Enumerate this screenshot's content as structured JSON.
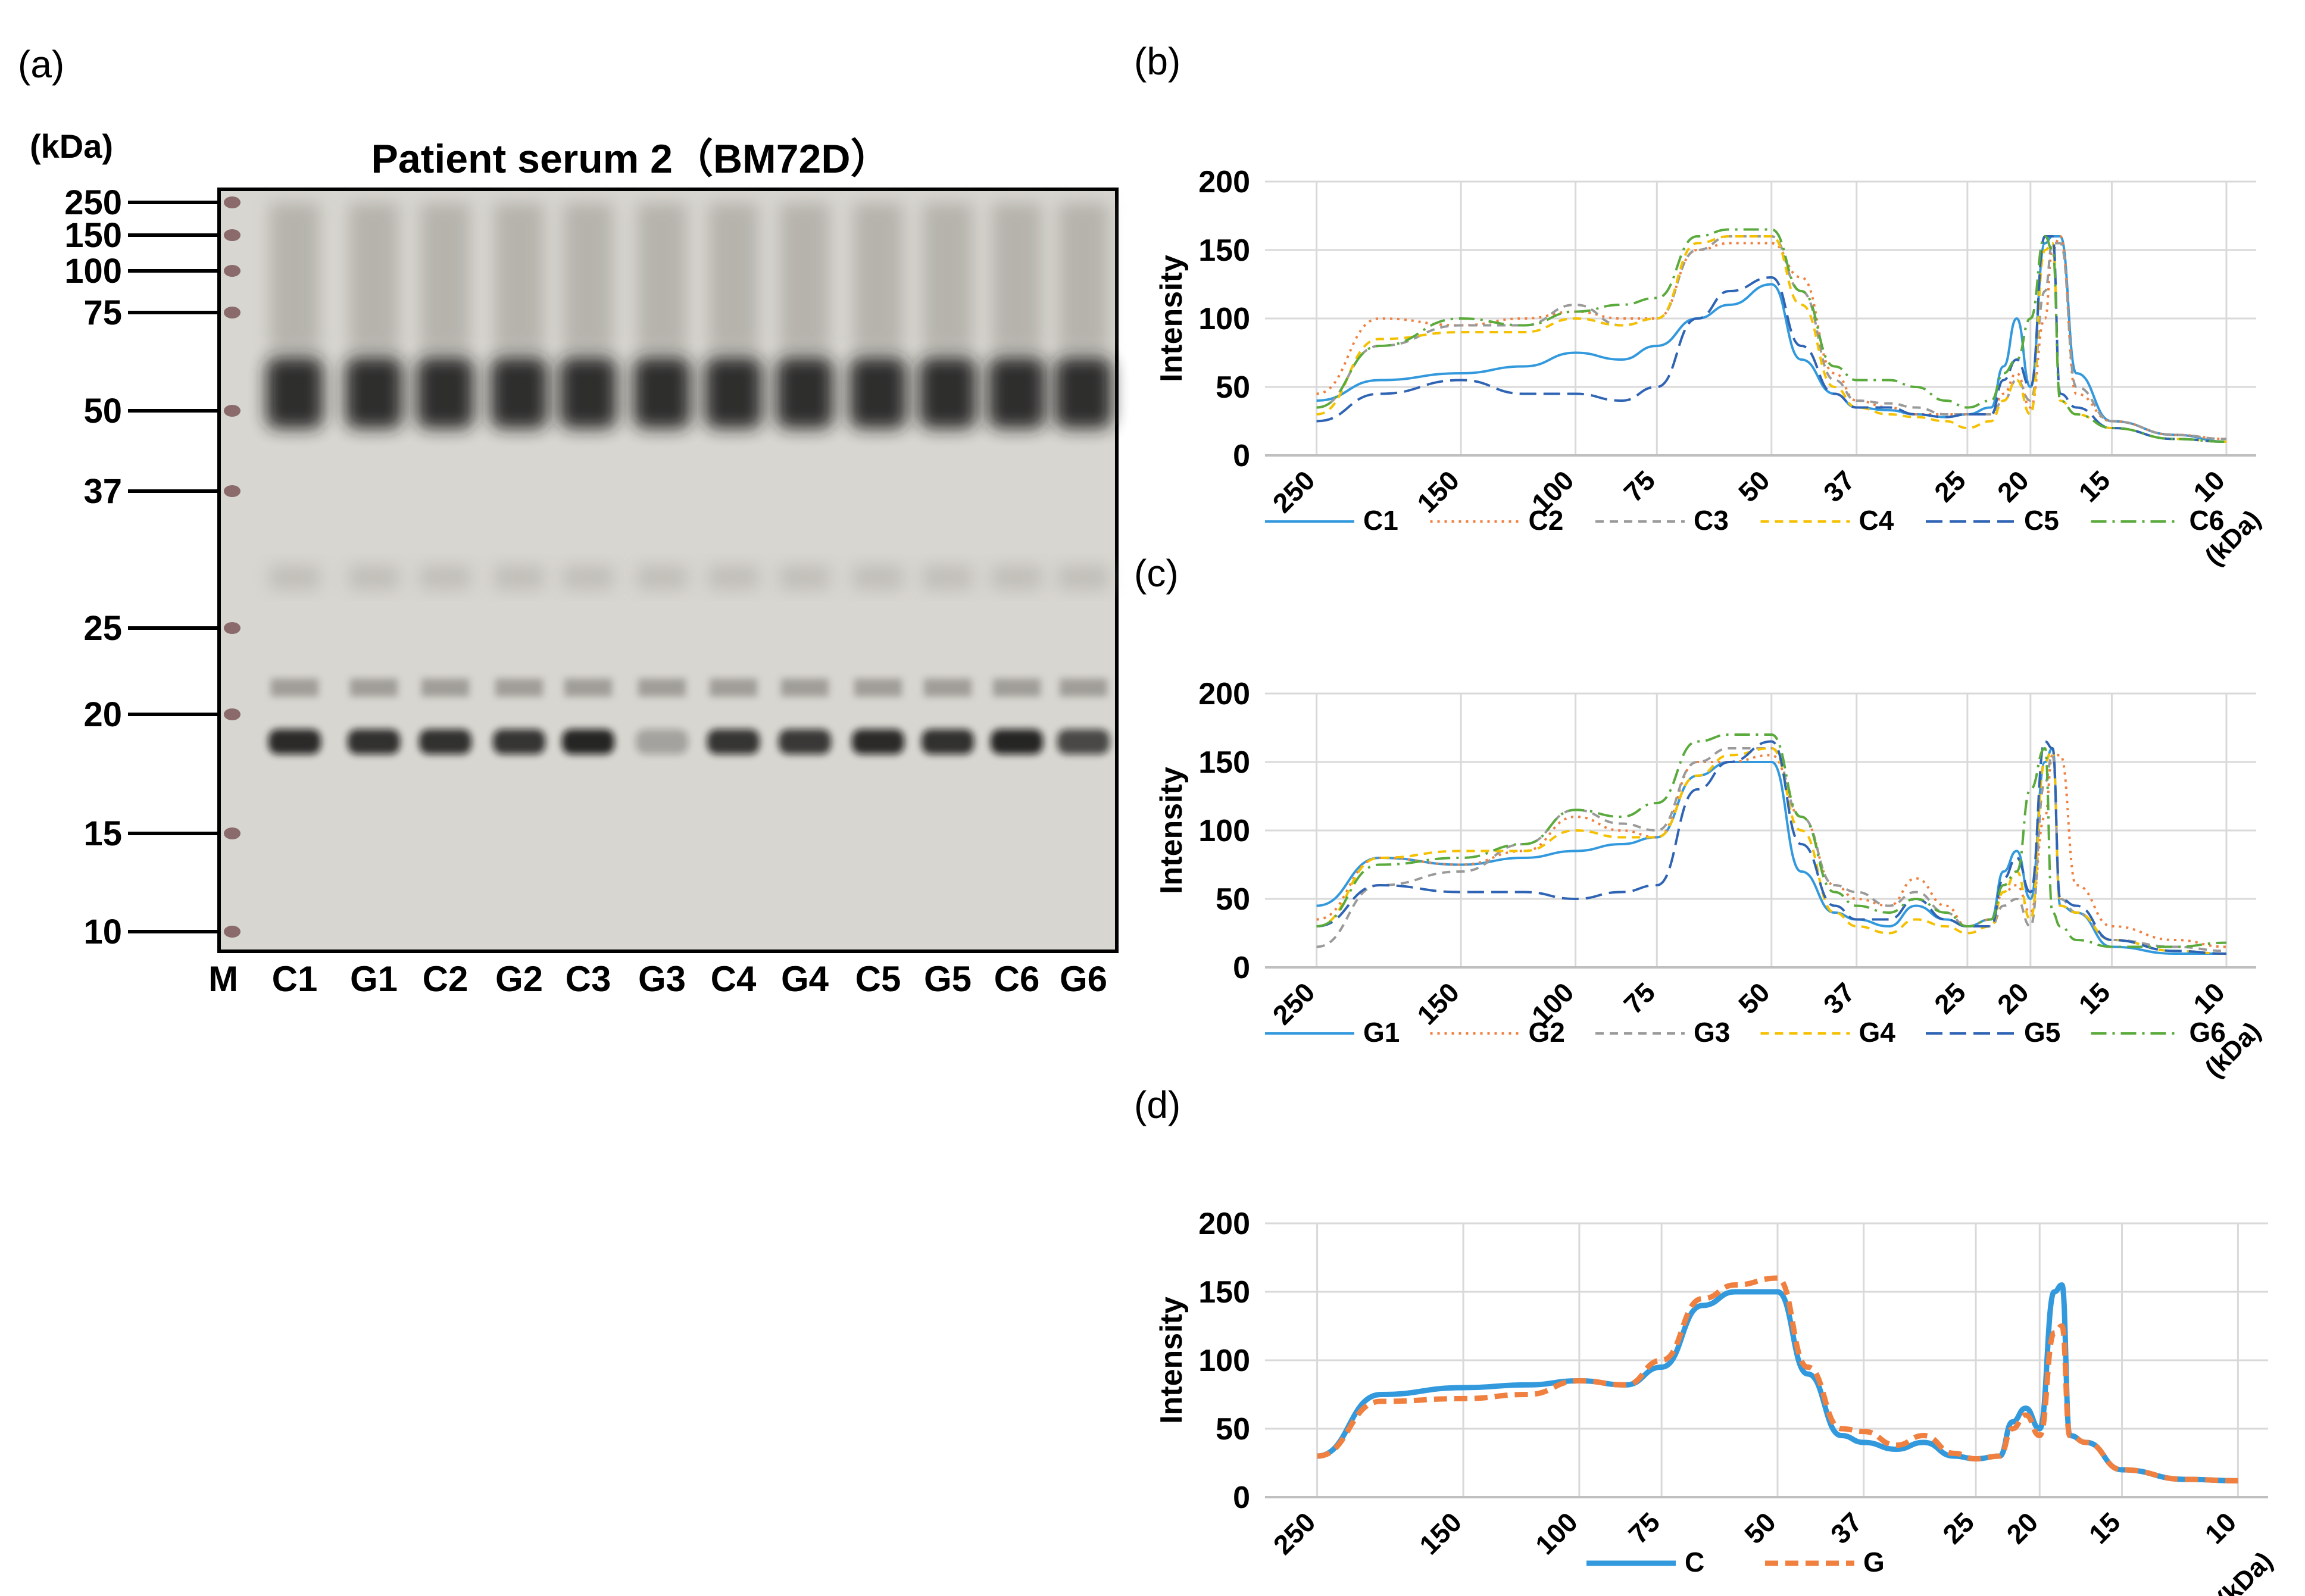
{
  "panels": {
    "a": {
      "label": "(a)"
    },
    "b": {
      "label": "(b)"
    },
    "c": {
      "label": "(c)"
    },
    "d": {
      "label": "(d)"
    }
  },
  "blot": {
    "title": "Patient serum 2（BM72D）",
    "unit_label": "(kDa)",
    "markers": [
      "250",
      "150",
      "100",
      "75",
      "50",
      "37",
      "25",
      "20",
      "15",
      "10"
    ],
    "marker_kda": [
      250,
      150,
      100,
      75,
      50,
      37,
      25,
      20,
      15,
      10
    ],
    "lanes": [
      "M",
      "C1",
      "G1",
      "C2",
      "G2",
      "C3",
      "G3",
      "C4",
      "G4",
      "C5",
      "G5",
      "C6",
      "G6"
    ],
    "band_intensity_20kDa": [
      0.9,
      0.85,
      0.82,
      0.82,
      0.8,
      0.88,
      0.25,
      0.8,
      0.78,
      0.85,
      0.82,
      0.88,
      0.7
    ]
  },
  "colors": {
    "blue": "#3399dd",
    "orange": "#f08040",
    "gray": "#9a9a9a",
    "yellow": "#f5c000",
    "darkblue": "#2f64b4",
    "green": "#5aaa3c",
    "grid": "#d9d9d9",
    "blot_bg": "#d8d6d0"
  },
  "chart_data": [
    {
      "panel": "b",
      "type": "line",
      "ylabel": "Intensity",
      "ylim": [
        0,
        200
      ],
      "yticks": [
        "0",
        "50",
        "100",
        "150",
        "200"
      ],
      "x_unit_label": "(kDa)",
      "xticks": [
        "250",
        "150",
        "100",
        "75",
        "50",
        "37",
        "25",
        "20",
        "15",
        "10"
      ],
      "x_positions": [
        "250",
        "150",
        "100",
        "75",
        "50",
        "37",
        "25",
        "20",
        "15",
        "10"
      ],
      "x_values": [
        250,
        200,
        150,
        120,
        100,
        85,
        75,
        65,
        58,
        50,
        45,
        40,
        37,
        33,
        30,
        27,
        25,
        23,
        22,
        21,
        20,
        19,
        18.5,
        18,
        17,
        15,
        12,
        10
      ],
      "series": [
        {
          "name": "C1",
          "style": "solid",
          "color": "blue",
          "values": [
            40,
            55,
            60,
            65,
            75,
            70,
            80,
            100,
            110,
            125,
            70,
            45,
            35,
            33,
            30,
            28,
            30,
            35,
            65,
            100,
            50,
            155,
            160,
            160,
            60,
            25,
            15,
            10
          ]
        },
        {
          "name": "C2",
          "style": "dotted",
          "color": "orange",
          "values": [
            45,
            100,
            95,
            100,
            105,
            100,
            100,
            150,
            155,
            155,
            130,
            60,
            40,
            35,
            30,
            30,
            30,
            30,
            45,
            60,
            35,
            100,
            150,
            160,
            45,
            25,
            15,
            12
          ]
        },
        {
          "name": "C3",
          "style": "dashed",
          "color": "gray",
          "values": [
            35,
            80,
            95,
            95,
            110,
            95,
            100,
            150,
            160,
            160,
            120,
            55,
            40,
            38,
            35,
            30,
            30,
            30,
            40,
            55,
            40,
            120,
            155,
            155,
            50,
            25,
            15,
            12
          ]
        },
        {
          "name": "C4",
          "style": "dashed",
          "color": "yellow",
          "values": [
            30,
            85,
            90,
            90,
            100,
            95,
            100,
            155,
            160,
            160,
            110,
            50,
            35,
            30,
            28,
            25,
            20,
            25,
            40,
            55,
            30,
            150,
            155,
            40,
            30,
            20,
            12,
            10
          ]
        },
        {
          "name": "C5",
          "style": "longdash",
          "color": "darkblue",
          "values": [
            25,
            45,
            55,
            45,
            45,
            40,
            50,
            100,
            120,
            130,
            80,
            45,
            35,
            35,
            30,
            28,
            30,
            30,
            55,
            70,
            50,
            160,
            160,
            45,
            35,
            20,
            12,
            10
          ]
        },
        {
          "name": "C6",
          "style": "dashdot",
          "color": "green",
          "values": [
            35,
            80,
            100,
            95,
            105,
            110,
            115,
            160,
            165,
            165,
            120,
            65,
            55,
            55,
            50,
            40,
            35,
            40,
            60,
            70,
            100,
            160,
            150,
            40,
            30,
            20,
            12,
            10
          ]
        }
      ]
    },
    {
      "panel": "c",
      "type": "line",
      "ylabel": "Intensity",
      "ylim": [
        0,
        200
      ],
      "yticks": [
        "0",
        "50",
        "100",
        "150",
        "200"
      ],
      "x_unit_label": "(kDa)",
      "xticks": [
        "250",
        "150",
        "100",
        "75",
        "50",
        "37",
        "25",
        "20",
        "15",
        "10"
      ],
      "x_positions": [
        "250",
        "150",
        "100",
        "75",
        "50",
        "37",
        "25",
        "20",
        "15",
        "10"
      ],
      "x_values": [
        250,
        200,
        150,
        120,
        100,
        85,
        75,
        65,
        58,
        50,
        45,
        40,
        37,
        33,
        30,
        27,
        25,
        23,
        22,
        21,
        20,
        19,
        18.5,
        18,
        17,
        15,
        12,
        10
      ],
      "series": [
        {
          "name": "G1",
          "style": "solid",
          "color": "blue",
          "values": [
            45,
            80,
            75,
            80,
            85,
            90,
            95,
            140,
            150,
            150,
            70,
            40,
            35,
            30,
            45,
            35,
            30,
            35,
            70,
            85,
            50,
            150,
            160,
            45,
            40,
            15,
            10,
            10
          ]
        },
        {
          "name": "G2",
          "style": "dotted",
          "color": "orange",
          "values": [
            35,
            80,
            75,
            85,
            110,
            100,
            95,
            150,
            150,
            155,
            110,
            60,
            50,
            45,
            65,
            45,
            30,
            35,
            55,
            60,
            40,
            110,
            155,
            155,
            60,
            30,
            20,
            15
          ]
        },
        {
          "name": "G3",
          "style": "dashed",
          "color": "gray",
          "values": [
            15,
            60,
            70,
            90,
            115,
            105,
            100,
            150,
            160,
            160,
            110,
            60,
            55,
            45,
            55,
            40,
            30,
            30,
            45,
            50,
            30,
            135,
            155,
            50,
            40,
            20,
            15,
            12
          ]
        },
        {
          "name": "G4",
          "style": "dashed",
          "color": "yellow",
          "values": [
            30,
            80,
            85,
            85,
            100,
            95,
            95,
            140,
            155,
            160,
            100,
            40,
            30,
            25,
            35,
            30,
            25,
            30,
            55,
            70,
            35,
            150,
            160,
            45,
            40,
            20,
            12,
            10
          ]
        },
        {
          "name": "G5",
          "style": "longdash",
          "color": "darkblue",
          "values": [
            30,
            60,
            55,
            55,
            50,
            55,
            60,
            130,
            150,
            165,
            90,
            45,
            35,
            35,
            50,
            35,
            30,
            30,
            65,
            80,
            55,
            165,
            160,
            50,
            45,
            20,
            12,
            10
          ]
        },
        {
          "name": "G6",
          "style": "dashdot",
          "color": "green",
          "values": [
            30,
            75,
            80,
            90,
            115,
            110,
            120,
            165,
            170,
            170,
            110,
            55,
            45,
            40,
            50,
            40,
            30,
            35,
            60,
            70,
            130,
            160,
            40,
            30,
            20,
            15,
            15,
            18
          ]
        }
      ]
    },
    {
      "panel": "d",
      "type": "line",
      "ylabel": "Intensity",
      "ylim": [
        0,
        200
      ],
      "yticks": [
        "0",
        "50",
        "100",
        "150",
        "200"
      ],
      "x_unit_label": "(kDa)",
      "xticks": [
        "250",
        "150",
        "100",
        "75",
        "50",
        "37",
        "25",
        "20",
        "15",
        "10"
      ],
      "x_positions": [
        "250",
        "150",
        "100",
        "75",
        "50",
        "37",
        "25",
        "20",
        "15",
        "10"
      ],
      "x_values": [
        250,
        200,
        150,
        120,
        100,
        85,
        75,
        65,
        58,
        50,
        45,
        40,
        37,
        33,
        30,
        27,
        25,
        23,
        22,
        21,
        20,
        19,
        18.5,
        18,
        17,
        15,
        12,
        10
      ],
      "series": [
        {
          "name": "C",
          "style": "thick-solid",
          "color": "blue",
          "values": [
            30,
            75,
            80,
            82,
            85,
            82,
            95,
            140,
            150,
            150,
            90,
            45,
            40,
            35,
            40,
            30,
            28,
            30,
            55,
            65,
            50,
            150,
            155,
            45,
            40,
            20,
            13,
            12
          ]
        },
        {
          "name": "G",
          "style": "thick-dashed",
          "color": "orange",
          "values": [
            30,
            70,
            72,
            75,
            85,
            82,
            100,
            145,
            155,
            160,
            95,
            50,
            48,
            38,
            45,
            32,
            28,
            30,
            50,
            60,
            45,
            120,
            125,
            45,
            40,
            20,
            13,
            12
          ]
        }
      ]
    }
  ]
}
